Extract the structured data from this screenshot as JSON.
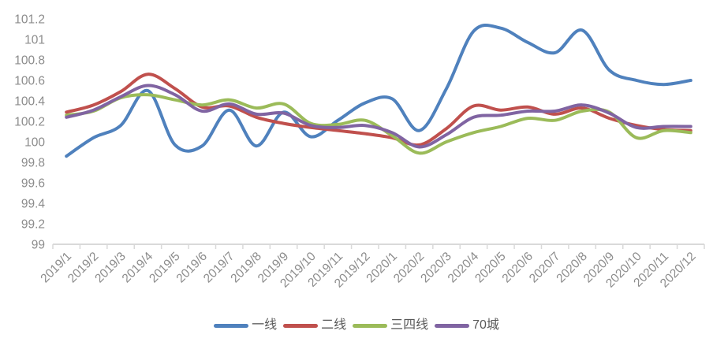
{
  "chart_data": {
    "type": "line",
    "title": "",
    "smooth": true,
    "grid": false,
    "legend_position": "bottom",
    "x": [
      "2019/1",
      "2019/2",
      "2019/3",
      "2019/4",
      "2019/5",
      "2019/6",
      "2019/7",
      "2019/8",
      "2019/9",
      "2019/10",
      "2019/11",
      "2019/12",
      "2020/1",
      "2020/2",
      "2020/3",
      "2020/4",
      "2020/5",
      "2020/6",
      "2020/7",
      "2020/8",
      "2020/9",
      "2020/10",
      "2020/11",
      "2020/12"
    ],
    "series": [
      {
        "name": "一线",
        "color": "#4F81BD",
        "values": [
          99.86,
          100.04,
          100.16,
          100.5,
          99.97,
          99.96,
          100.31,
          99.96,
          100.29,
          100.05,
          100.21,
          100.38,
          100.42,
          100.11,
          100.52,
          101.08,
          101.11,
          100.97,
          100.87,
          101.09,
          100.7,
          100.6,
          100.56,
          100.6
        ]
      },
      {
        "name": "二线",
        "color": "#C0504D",
        "values": [
          100.29,
          100.36,
          100.49,
          100.66,
          100.52,
          100.34,
          100.35,
          100.24,
          100.18,
          100.14,
          100.11,
          100.08,
          100.04,
          99.97,
          100.13,
          100.35,
          100.31,
          100.34,
          100.27,
          100.33,
          100.23,
          100.16,
          100.12,
          100.11
        ]
      },
      {
        "name": "三四线",
        "color": "#9BBB59",
        "values": [
          100.26,
          100.3,
          100.43,
          100.46,
          100.41,
          100.36,
          100.41,
          100.33,
          100.37,
          100.18,
          100.17,
          100.21,
          100.06,
          99.89,
          100.0,
          100.09,
          100.15,
          100.23,
          100.21,
          100.3,
          100.29,
          100.04,
          100.11,
          100.09
        ]
      },
      {
        "name": "70城",
        "color": "#8064A2",
        "values": [
          100.24,
          100.31,
          100.44,
          100.55,
          100.46,
          100.3,
          100.37,
          100.27,
          100.28,
          100.16,
          100.14,
          100.16,
          100.09,
          99.95,
          100.07,
          100.24,
          100.26,
          100.3,
          100.3,
          100.36,
          100.28,
          100.14,
          100.15,
          100.15
        ]
      }
    ],
    "y_axis": {
      "min": 99,
      "max": 101.2,
      "tick_values": [
        99,
        99.2,
        99.4,
        99.6,
        99.8,
        100,
        100.2,
        100.4,
        100.6,
        100.8,
        101,
        101.2
      ],
      "tick_labels": [
        "99",
        "99.2",
        "99.4",
        "99.6",
        "99.8",
        "100",
        "100.2",
        "100.4",
        "100.6",
        "100.8",
        "101",
        "101.2"
      ]
    }
  },
  "colors": {
    "background": "#FFFFFF",
    "axis_line": "#D9D9D9",
    "axis_text": "#8C8C8C",
    "legend_text": "#595959"
  }
}
